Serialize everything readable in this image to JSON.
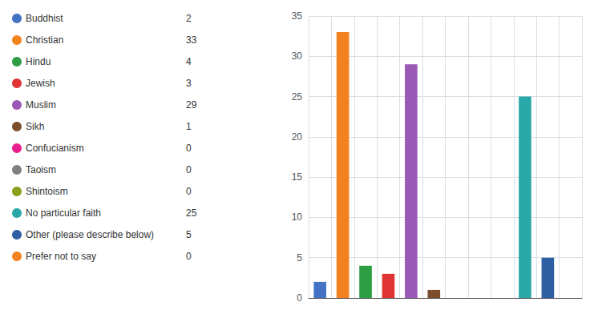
{
  "chart_data": {
    "type": "bar",
    "categories": [
      "Buddhist",
      "Christian",
      "Hindu",
      "Jewish",
      "Muslim",
      "Sikh",
      "Confucianism",
      "Taoism",
      "Shintoism",
      "No particular faith",
      "Other (please describe below)",
      "Prefer not to say"
    ],
    "values": [
      2,
      33,
      4,
      3,
      29,
      1,
      0,
      0,
      0,
      25,
      5,
      0
    ],
    "colors": [
      "#4472c4",
      "#f4811f",
      "#2e9e44",
      "#e03333",
      "#9b59b6",
      "#7d4e2e",
      "#e91e8c",
      "#808080",
      "#8c9e1b",
      "#2aa8a8",
      "#2e5fa3",
      "#f4811f"
    ],
    "ylim": [
      0,
      35
    ],
    "yticks": [
      0,
      5,
      10,
      15,
      20,
      25,
      30,
      35
    ],
    "grid": true,
    "legend": "left",
    "tick_labels": "y"
  }
}
